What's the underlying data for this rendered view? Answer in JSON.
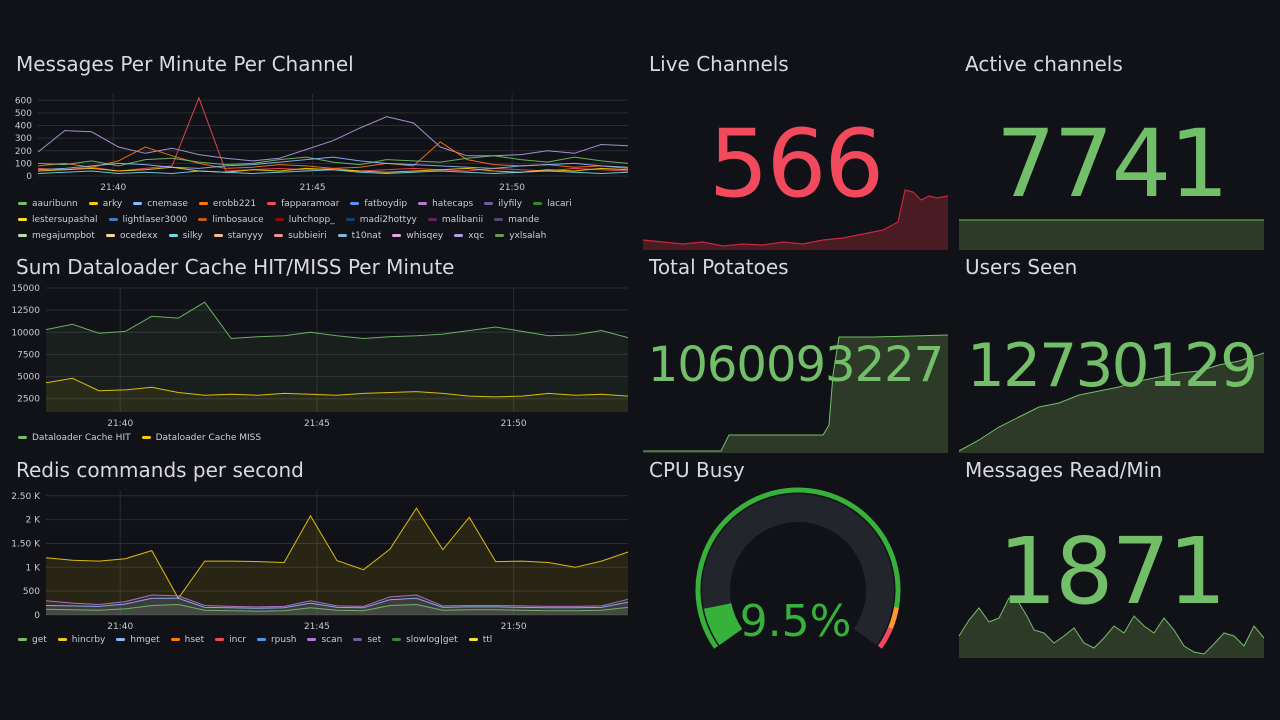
{
  "panels": {
    "messages": {
      "title": "Messages Per Minute Per Channel",
      "legend": [
        {
          "name": "aauribunn",
          "color": "#73bf69"
        },
        {
          "name": "arky",
          "color": "#f2cc0c"
        },
        {
          "name": "cnemase",
          "color": "#8ab8ff"
        },
        {
          "name": "erobb221",
          "color": "#ff780a"
        },
        {
          "name": "fapparamoar",
          "color": "#f2495c"
        },
        {
          "name": "fatboydip",
          "color": "#5794f2"
        },
        {
          "name": "hatecaps",
          "color": "#b877d9"
        },
        {
          "name": "ilyfily",
          "color": "#705da0"
        },
        {
          "name": "lacari",
          "color": "#37872d"
        },
        {
          "name": "lestersupashal",
          "color": "#fade2a"
        },
        {
          "name": "lightlaser3000",
          "color": "#447ebc"
        },
        {
          "name": "limbosauce",
          "color": "#c15c17"
        },
        {
          "name": "luhchopp_",
          "color": "#890f02"
        },
        {
          "name": "madi2hottyy",
          "color": "#0a437c"
        },
        {
          "name": "malibanii",
          "color": "#6d1f62"
        },
        {
          "name": "mande",
          "color": "#584477"
        },
        {
          "name": "megajumpbot",
          "color": "#b7dbab"
        },
        {
          "name": "ocedexx",
          "color": "#f4d598"
        },
        {
          "name": "silky",
          "color": "#70dbed"
        },
        {
          "name": "stanyyy",
          "color": "#f9ba8f"
        },
        {
          "name": "subbieiri",
          "color": "#f29191"
        },
        {
          "name": "t10nat",
          "color": "#82b5d8"
        },
        {
          "name": "whisqey",
          "color": "#e5a8e2"
        },
        {
          "name": "xqc",
          "color": "#aea2e0"
        },
        {
          "name": "yxlsalah",
          "color": "#629e51"
        }
      ]
    },
    "dataloader": {
      "title": "Sum Dataloader Cache HIT/MISS Per Minute",
      "legend": [
        {
          "name": "Dataloader Cache HIT",
          "color": "#73bf69"
        },
        {
          "name": "Dataloader Cache MISS",
          "color": "#f2cc0c"
        }
      ]
    },
    "redis": {
      "title": "Redis commands per second",
      "legend": [
        {
          "name": "get",
          "color": "#73bf69"
        },
        {
          "name": "hincrby",
          "color": "#f2cc0c"
        },
        {
          "name": "hmget",
          "color": "#8ab8ff"
        },
        {
          "name": "hset",
          "color": "#ff780a"
        },
        {
          "name": "incr",
          "color": "#f2495c"
        },
        {
          "name": "rpush",
          "color": "#5794f2"
        },
        {
          "name": "scan",
          "color": "#b877d9"
        },
        {
          "name": "set",
          "color": "#705da0"
        },
        {
          "name": "slowlog|get",
          "color": "#37872d"
        },
        {
          "name": "ttl",
          "color": "#fade2a"
        }
      ]
    },
    "live_channels": {
      "title": "Live Channels",
      "value": "566",
      "color": "#f2495c"
    },
    "active_channels": {
      "title": "Active channels",
      "value": "7741",
      "color": "#73bf69"
    },
    "total_potatoes": {
      "title": "Total Potatoes",
      "value": "1060093227",
      "color": "#73bf69"
    },
    "users_seen": {
      "title": "Users Seen",
      "value": "12730129",
      "color": "#73bf69"
    },
    "cpu_busy": {
      "title": "CPU Busy",
      "value": "9.5%",
      "percent": 9.5,
      "color": "#37b13a"
    },
    "messages_read": {
      "title": "Messages Read/Min",
      "value": "1871",
      "color": "#73bf69"
    }
  },
  "chart_data": [
    {
      "type": "line",
      "title": "Messages Per Minute Per Channel",
      "x_ticks": [
        "21:40",
        "21:45",
        "21:50"
      ],
      "y_ticks": [
        0,
        100,
        200,
        300,
        400,
        500,
        600
      ],
      "ylim": [
        0,
        650
      ],
      "series": [
        {
          "name": "xqc",
          "color": "#aea2e0",
          "values": [
            190,
            360,
            350,
            230,
            180,
            220,
            170,
            140,
            120,
            140,
            210,
            280,
            380,
            470,
            420,
            230,
            160,
            160,
            170,
            200,
            180,
            250,
            240
          ]
        },
        {
          "name": "fapparamoar",
          "color": "#f2495c",
          "values": [
            60,
            50,
            70,
            40,
            60,
            80,
            620,
            40,
            50,
            60,
            50,
            60,
            40,
            50,
            60,
            50,
            40,
            60,
            50,
            40,
            60,
            50,
            40
          ]
        },
        {
          "name": "erobb221",
          "color": "#ff780a",
          "values": [
            80,
            100,
            70,
            120,
            230,
            160,
            100,
            60,
            70,
            90,
            80,
            60,
            70,
            100,
            80,
            270,
            130,
            90,
            80,
            90,
            70,
            80,
            60
          ]
        },
        {
          "name": "aauribunn",
          "color": "#73bf69",
          "values": [
            100,
            90,
            120,
            80,
            130,
            140,
            110,
            90,
            100,
            130,
            150,
            110,
            90,
            130,
            120,
            110,
            140,
            160,
            130,
            110,
            150,
            120,
            100
          ]
        },
        {
          "name": "cnemase",
          "color": "#8ab8ff",
          "values": [
            50,
            60,
            80,
            100,
            90,
            70,
            60,
            80,
            90,
            110,
            130,
            150,
            120,
            100,
            90,
            80,
            70,
            60,
            80,
            90,
            100,
            80,
            70
          ]
        },
        {
          "name": "arky",
          "color": "#f2cc0c",
          "values": [
            40,
            50,
            60,
            40,
            50,
            70,
            40,
            30,
            50,
            40,
            60,
            50,
            40,
            30,
            40,
            50,
            60,
            40,
            30,
            50,
            40,
            60,
            50
          ]
        },
        {
          "name": "silky",
          "color": "#70dbed",
          "values": [
            20,
            30,
            40,
            20,
            30,
            20,
            40,
            30,
            20,
            30,
            40,
            50,
            30,
            20,
            30,
            40,
            30,
            20,
            30,
            40,
            30,
            20,
            30
          ]
        }
      ]
    },
    {
      "type": "area",
      "title": "Sum Dataloader Cache HIT/MISS Per Minute",
      "x_ticks": [
        "21:40",
        "21:45",
        "21:50"
      ],
      "y_ticks": [
        2500,
        5000,
        7500,
        10000,
        12500,
        15000
      ],
      "ylim": [
        1000,
        15000
      ],
      "series": [
        {
          "name": "Dataloader Cache HIT",
          "color": "#73bf69",
          "values": [
            10300,
            10900,
            9900,
            10100,
            11800,
            11600,
            13400,
            9300,
            9500,
            9600,
            10000,
            9600,
            9300,
            9500,
            9600,
            9800,
            10200,
            10600,
            10100,
            9600,
            9700,
            10200,
            9400
          ]
        },
        {
          "name": "Dataloader Cache MISS",
          "color": "#f2cc0c",
          "values": [
            4300,
            4800,
            3400,
            3500,
            3800,
            3200,
            2900,
            3000,
            2900,
            3100,
            3000,
            2900,
            3100,
            3200,
            3300,
            3100,
            2800,
            2700,
            2800,
            3100,
            2900,
            3000,
            2800
          ]
        }
      ]
    },
    {
      "type": "area",
      "title": "Redis commands per second",
      "x_ticks": [
        "21:40",
        "21:45",
        "21:50"
      ],
      "y_ticks": [
        0,
        500,
        1000,
        1500,
        2000,
        2500
      ],
      "y_tick_labels": [
        "0",
        "500",
        "1 K",
        "1.50 K",
        "2 K",
        "2.50 K"
      ],
      "ylim": [
        0,
        2600
      ],
      "series": [
        {
          "name": "hincrby",
          "color": "#f2cc0c",
          "values": [
            1200,
            1150,
            1130,
            1180,
            1350,
            350,
            1130,
            1130,
            1120,
            1100,
            2080,
            1140,
            950,
            1380,
            2240,
            1370,
            2050,
            1120,
            1130,
            1100,
            1000,
            1130,
            1320
          ]
        },
        {
          "name": "scan",
          "color": "#b877d9",
          "values": [
            300,
            250,
            220,
            280,
            420,
            400,
            200,
            180,
            170,
            180,
            300,
            190,
            180,
            380,
            420,
            190,
            200,
            200,
            190,
            180,
            180,
            190,
            330
          ]
        },
        {
          "name": "hmget",
          "color": "#8ab8ff",
          "values": [
            200,
            190,
            180,
            230,
            350,
            350,
            160,
            150,
            140,
            150,
            250,
            160,
            150,
            320,
            350,
            160,
            170,
            170,
            160,
            150,
            150,
            160,
            270
          ]
        },
        {
          "name": "get",
          "color": "#73bf69",
          "values": [
            120,
            110,
            100,
            130,
            200,
            220,
            100,
            90,
            80,
            90,
            150,
            100,
            90,
            200,
            220,
            100,
            110,
            110,
            100,
            90,
            90,
            100,
            160
          ]
        }
      ]
    }
  ]
}
